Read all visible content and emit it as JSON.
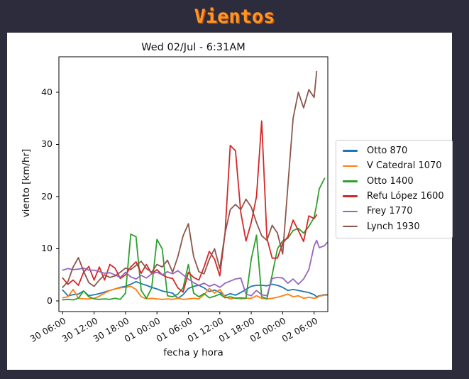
{
  "page": {
    "title": "Vientos",
    "background_color": "#2d2c3d",
    "title_color": "#ff9621"
  },
  "chart_data": {
    "type": "line",
    "title": "Wed 02/Jul - 6:31AM",
    "xlabel": "fecha y hora",
    "ylabel": "viento [km/hr]",
    "grid": false,
    "legend_position": "center-right",
    "x_tick_labels": [
      "30 06:00",
      "30 12:00",
      "30 18:00",
      "01 00:00",
      "01 06:00",
      "01 12:00",
      "01 18:00",
      "02 00:00",
      "02 06:00"
    ],
    "x_tick_hours": [
      0,
      6,
      12,
      18,
      24,
      30,
      36,
      42,
      48
    ],
    "y_ticks": [
      0,
      10,
      20,
      30,
      40
    ],
    "xlim_hours": [
      -0.72,
      50.62
    ],
    "ylim": [
      -2.04,
      46.8
    ],
    "x_hours": [
      0,
      1,
      2,
      3,
      4,
      5,
      6,
      7,
      8,
      9,
      10,
      11,
      12,
      13,
      14,
      15,
      16,
      17,
      18,
      19,
      20,
      21,
      22,
      23,
      24,
      25,
      26,
      27,
      28,
      29,
      30,
      31,
      32,
      33,
      34,
      35,
      36,
      37,
      38,
      39,
      40,
      41,
      42,
      43,
      44,
      45,
      46,
      47,
      48,
      48.5,
      49,
      50,
      50.5
    ],
    "series": [
      {
        "name": "Otto 870",
        "color": "#1f77b4",
        "values": [
          2.1,
          1.0,
          1.2,
          1.3,
          1.9,
          1.0,
          1.2,
          1.4,
          1.7,
          2.0,
          2.3,
          2.6,
          2.8,
          3.2,
          3.7,
          3.3,
          3.0,
          2.6,
          2.3,
          1.9,
          1.7,
          1.5,
          0.5,
          1.2,
          2.4,
          2.8,
          3.0,
          2.5,
          1.8,
          2.1,
          1.6,
          1.0,
          1.4,
          1.1,
          1.6,
          2.2,
          2.8,
          3.0,
          3.0,
          2.9,
          3.2,
          3.0,
          2.6,
          2.0,
          2.2,
          2.0,
          1.8,
          1.6,
          1.2,
          0.8,
          1.0,
          1.2,
          1.2
        ]
      },
      {
        "name": "V Catedral 1070",
        "color": "#ff7f0e",
        "values": [
          0.6,
          0.8,
          2.2,
          0.5,
          0.4,
          0.4,
          0.5,
          0.9,
          1.5,
          2.0,
          2.3,
          2.5,
          2.6,
          2.8,
          2.2,
          0.8,
          0.4,
          0.5,
          0.4,
          0.3,
          0.4,
          0.3,
          0.5,
          0.3,
          0.4,
          0.5,
          0.4,
          1.2,
          2.4,
          1.5,
          2.2,
          0.8,
          0.4,
          0.6,
          0.4,
          0.5,
          0.5,
          1.0,
          0.5,
          0.4,
          0.5,
          0.7,
          1.0,
          1.3,
          0.8,
          1.0,
          0.5,
          0.7,
          0.5,
          0.6,
          0.9,
          1.1,
          1.1
        ]
      },
      {
        "name": "Otto 1400",
        "color": "#2ca02c",
        "values": [
          0.2,
          0.3,
          0.2,
          0.5,
          1.9,
          0.8,
          0.4,
          0.3,
          0.4,
          0.3,
          0.5,
          0.3,
          1.5,
          12.8,
          12.3,
          2.0,
          0.5,
          2.5,
          11.8,
          10.0,
          1.0,
          0.8,
          1.3,
          2.5,
          7.0,
          1.5,
          0.8,
          1.4,
          0.6,
          0.9,
          1.3,
          0.6,
          0.8,
          0.5,
          0.6,
          0.5,
          8.0,
          12.6,
          0.8,
          0.4,
          5.0,
          10.0,
          11.5,
          12.0,
          13.5,
          13.9,
          13.0,
          14.3,
          16.0,
          18.5,
          21.5,
          23.5,
          null
        ]
      },
      {
        "name": "Refu López 1600",
        "color": "#d62728",
        "values": [
          4.4,
          3.2,
          4.0,
          3.0,
          5.5,
          6.6,
          4.0,
          6.5,
          4.0,
          7.0,
          6.3,
          4.3,
          5.0,
          6.5,
          7.5,
          5.3,
          7.0,
          5.2,
          6.0,
          5.0,
          4.5,
          4.3,
          2.5,
          1.7,
          5.5,
          4.5,
          4.0,
          6.5,
          9.5,
          8.0,
          4.8,
          13.0,
          29.8,
          28.8,
          17.0,
          11.5,
          15.0,
          20.0,
          34.5,
          12.0,
          8.2,
          8.2,
          11.0,
          12.3,
          15.5,
          13.5,
          11.4,
          16.3,
          15.8,
          16.5,
          null,
          null,
          null
        ]
      },
      {
        "name": "Frey 1770",
        "color": "#9467bd",
        "values": [
          5.9,
          6.2,
          6.0,
          6.1,
          6.3,
          5.9,
          5.9,
          5.6,
          5.3,
          5.4,
          5.0,
          4.5,
          5.5,
          4.6,
          4.2,
          4.9,
          4.4,
          5.2,
          5.5,
          5.0,
          5.6,
          5.2,
          5.8,
          5.0,
          4.2,
          3.5,
          3.0,
          3.4,
          2.8,
          3.2,
          2.6,
          3.4,
          3.8,
          4.2,
          4.4,
          1.3,
          1.0,
          2.0,
          1.2,
          1.0,
          4.3,
          4.5,
          4.4,
          3.4,
          4.2,
          3.2,
          4.2,
          6.0,
          10.6,
          11.6,
          10.2,
          10.6,
          11.2
        ]
      },
      {
        "name": "Lynch 1930",
        "color": "#8c564b",
        "values": [
          2.6,
          3.7,
          6.5,
          8.3,
          5.7,
          3.5,
          2.8,
          4.0,
          5.0,
          4.5,
          4.8,
          5.5,
          6.3,
          6.0,
          6.8,
          7.6,
          6.2,
          5.5,
          7.0,
          6.5,
          7.8,
          5.5,
          8.5,
          12.5,
          14.8,
          8.5,
          5.6,
          5.2,
          8.0,
          10.0,
          6.2,
          13.0,
          17.5,
          18.5,
          17.5,
          19.5,
          18.0,
          15.0,
          12.5,
          11.6,
          14.5,
          13.0,
          9.0,
          22.0,
          35.0,
          40.0,
          37.0,
          40.5,
          39.0,
          44.0,
          null,
          null,
          null
        ]
      }
    ]
  }
}
